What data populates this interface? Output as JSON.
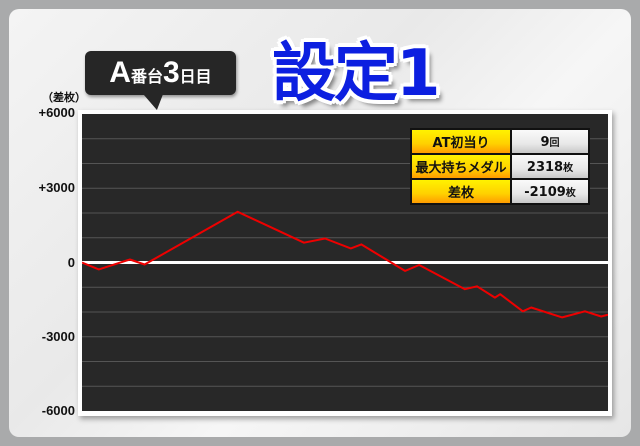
{
  "header": {
    "machine_label_letter": "A",
    "machine_label_mid": "番台",
    "machine_label_day": "3",
    "machine_label_suffix": "日目",
    "title": "設定1"
  },
  "stats": [
    {
      "label": "AT初当り",
      "value": "9",
      "unit": "回"
    },
    {
      "label": "最大持ちメダル",
      "value": "2318",
      "unit": "枚"
    },
    {
      "label": "差枚",
      "value": "-2109",
      "unit": "枚"
    }
  ],
  "chart_data": {
    "type": "line",
    "ylabel": "（差枚）",
    "ylim": [
      -6000,
      6000
    ],
    "yticks": [
      6000,
      3000,
      0,
      -3000,
      -6000
    ],
    "ytick_labels": [
      "+6000",
      "+3000",
      "0",
      "-3000",
      "-6000"
    ],
    "grid": true,
    "colors": {
      "line": "#ee0000",
      "background": "#282828",
      "zero_line": "#ffffff",
      "grid": "#555555"
    },
    "x": [
      0,
      3.2,
      9.1,
      11.9,
      29.6,
      42.2,
      46.2,
      51.1,
      53.1,
      61.4,
      64.1,
      72.8,
      75.1,
      78.5,
      79.5,
      83.8,
      85.4,
      91.3,
      95.6,
      98.7,
      100
    ],
    "y": [
      0,
      -280,
      120,
      -80,
      2050,
      800,
      970,
      570,
      730,
      -340,
      -100,
      -1080,
      -960,
      -1420,
      -1280,
      -1970,
      -1820,
      -2220,
      -1970,
      -2180,
      -2109
    ]
  }
}
